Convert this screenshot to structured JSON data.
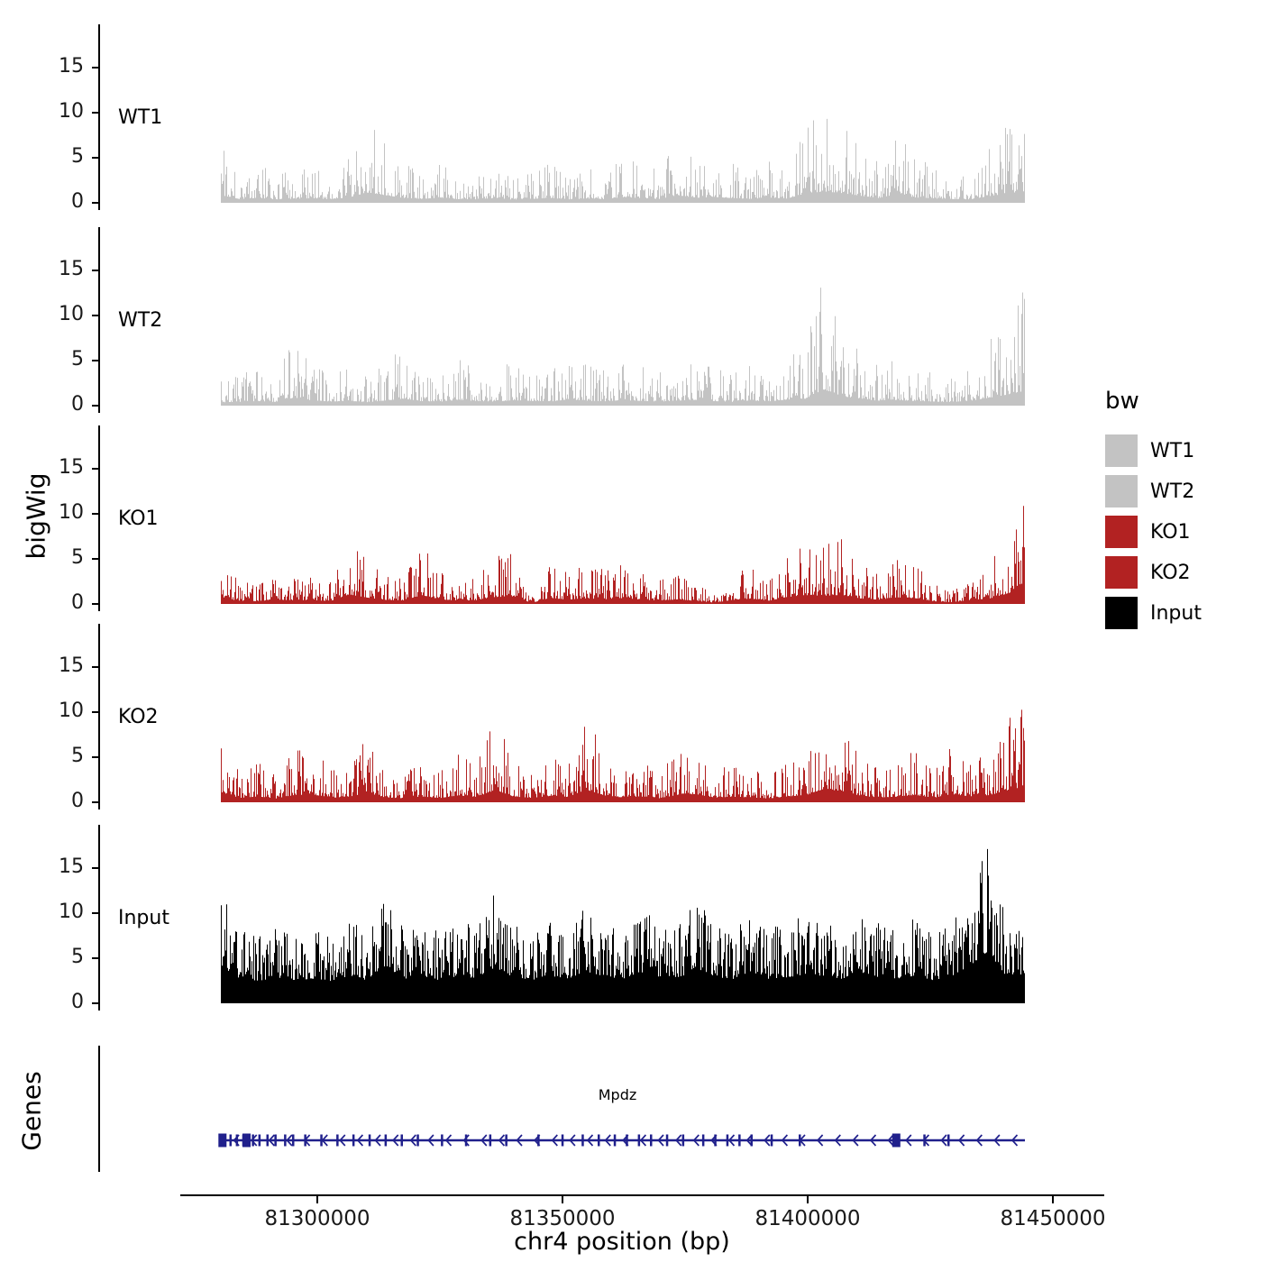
{
  "figure": {
    "ylabel_bigwig": "bigWig",
    "ylabel_genes": "Genes",
    "xlabel": "chr4 position (bp)"
  },
  "legend": {
    "title": "bw",
    "entries": [
      {
        "label": "WT1",
        "color": "#c3c3c3"
      },
      {
        "label": "WT2",
        "color": "#c3c3c3"
      },
      {
        "label": "KO1",
        "color": "#b22222"
      },
      {
        "label": "KO2",
        "color": "#b22222"
      },
      {
        "label": "Input",
        "color": "#000000"
      }
    ]
  },
  "chart_data": {
    "type": "area",
    "title": "",
    "xlabel": "chr4 position (bp)",
    "ylabel": "bigWig",
    "x_axis": {
      "axis_range": [
        81272000,
        81460500
      ],
      "data_range": [
        81280500,
        81444000
      ],
      "ticks": [
        81300000,
        81350000,
        81400000,
        81450000
      ],
      "tick_labels": [
        "81300000",
        "81350000",
        "81400000",
        "81450000"
      ]
    },
    "y_axis": {
      "ticks": [
        0,
        5,
        10,
        15
      ],
      "range": [
        0,
        19
      ]
    },
    "tracks": [
      {
        "name": "WT1",
        "color": "#c3c3c3",
        "seed": 101,
        "floor": 0.12,
        "spikiness": 3.5,
        "samples": [
          7,
          3.5,
          4.5,
          3.2,
          3.8,
          4.2,
          3.4,
          5,
          9.5,
          7,
          4.5,
          3.6,
          4.8,
          3.4,
          3.2,
          4.4,
          3,
          3.6,
          4.6,
          3.2,
          4,
          3.4,
          5.2,
          4.4,
          3.6,
          7,
          4.6,
          5.4,
          4.4,
          3.6,
          4.8,
          4,
          8.5,
          10.5,
          9,
          6.5,
          4.5,
          8,
          5,
          4.2,
          3.4,
          3.2,
          6,
          8.5,
          10.8
        ]
      },
      {
        "name": "WT2",
        "color": "#c3c3c3",
        "seed": 202,
        "floor": 0.12,
        "spikiness": 3.5,
        "samples": [
          3.0,
          3.6,
          4.2,
          3.4,
          7.5,
          4.6,
          3.8,
          4.4,
          3.2,
          4.8,
          6.5,
          4.0,
          3.6,
          5.5,
          4.2,
          3.8,
          5.0,
          4.4,
          3.6,
          5.8,
          4.6,
          4.0,
          5.2,
          4.4,
          3.8,
          4.6,
          5.4,
          4.2,
          3.6,
          4.8,
          4.0,
          5.6,
          6.5,
          15.0,
          9.0,
          6.0,
          4.6,
          5.2,
          4.2,
          3.8,
          3.4,
          4.4,
          7.0,
          10.0,
          13.5
        ]
      },
      {
        "name": "KO1",
        "color": "#b22222",
        "seed": 303,
        "floor": 0.14,
        "spikiness": 3.2,
        "samples": [
          4.5,
          2.6,
          2.2,
          3.4,
          2.8,
          3.0,
          2.4,
          7.5,
          5.0,
          3.2,
          2.8,
          7.0,
          3.6,
          2.6,
          3.0,
          5.5,
          6.0,
          0.8,
          4.8,
          3.4,
          4.4,
          3.8,
          4.6,
          3.4,
          2.8,
          3.6,
          2.4,
          1.0,
          3.2,
          4.2,
          2.6,
          5.5,
          7.0,
          6.5,
          7.2,
          4.4,
          3.4,
          5.2,
          4.6,
          2.2,
          1.4,
          3.0,
          4.0,
          8.0,
          13.0
        ]
      },
      {
        "name": "KO2",
        "color": "#b22222",
        "seed": 404,
        "floor": 0.14,
        "spikiness": 3.2,
        "samples": [
          8.0,
          3.4,
          4.6,
          3.0,
          5.8,
          6.2,
          3.6,
          4.4,
          7.5,
          3.8,
          3.2,
          4.6,
          3.4,
          5.4,
          4.2,
          9.7,
          4.6,
          3.4,
          5.0,
          4.2,
          10.0,
          5.4,
          3.8,
          4.6,
          3.2,
          5.8,
          6.5,
          3.6,
          4.4,
          3.8,
          3.0,
          4.6,
          5.6,
          10.4,
          9.0,
          5.2,
          3.8,
          4.4,
          5.8,
          3.4,
          6.5,
          4.8,
          5.4,
          9.0,
          12.7
        ]
      },
      {
        "name": "Input",
        "color": "#000000",
        "seed": 505,
        "floor": 0.32,
        "spikiness": 2.0,
        "samples": [
          13,
          8.5,
          7.5,
          9,
          8,
          8.5,
          7.5,
          9.5,
          8,
          13,
          8.5,
          9,
          8,
          9.5,
          8.5,
          12.5,
          9,
          8,
          9.5,
          8.5,
          11,
          9,
          8.5,
          10.5,
          9,
          8.5,
          12,
          9.5,
          8,
          10,
          8.5,
          9,
          10,
          9.5,
          8.5,
          10.5,
          9,
          8.5,
          9.5,
          8,
          9,
          13,
          18,
          9.5,
          10
        ]
      }
    ],
    "genes": {
      "name": "Mpdz",
      "strand": "-",
      "color": "#20208c",
      "major_exons": [
        0.002,
        0.032,
        0.84
      ],
      "minor_exons": [
        0.012,
        0.02,
        0.028,
        0.04,
        0.048,
        0.058,
        0.068,
        0.08,
        0.09,
        0.105,
        0.125,
        0.145,
        0.165,
        0.185,
        0.205,
        0.225,
        0.245,
        0.275,
        0.305,
        0.335,
        0.355,
        0.395,
        0.425,
        0.45,
        0.47,
        0.49,
        0.505,
        0.52,
        0.535,
        0.555,
        0.575,
        0.6,
        0.615,
        0.63,
        0.645,
        0.66,
        0.685,
        0.72,
        0.875,
        0.905
      ]
    }
  }
}
